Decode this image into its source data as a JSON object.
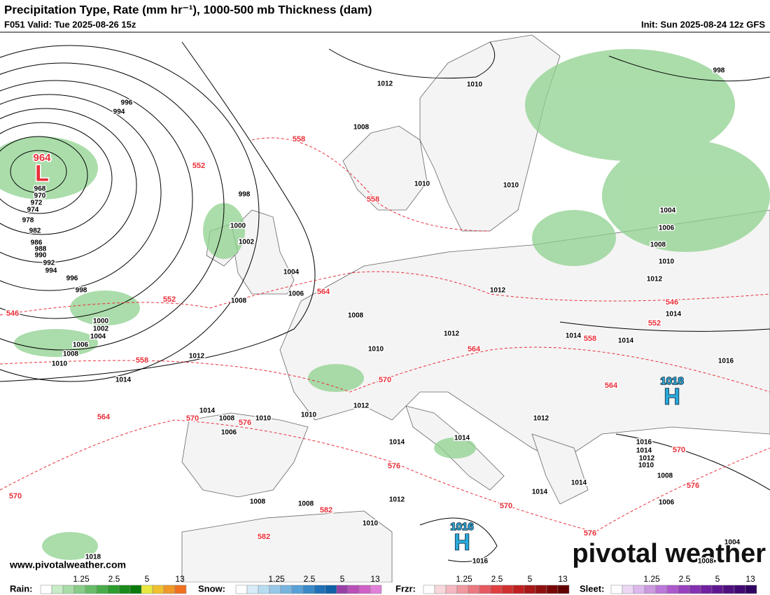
{
  "header": {
    "title": "Precipitation Type, Rate (mm hr⁻¹), 1000-500 mb Thickness (dam)",
    "valid": "F051 Valid: Tue 2025-08-26 15z",
    "init": "Init: Sun 2025-08-24 12z GFS"
  },
  "centers": [
    {
      "value": "964",
      "symbol": "L"
    },
    {
      "value": "1018",
      "symbol": "H"
    },
    {
      "value": "1016",
      "symbol": "H"
    }
  ],
  "isobar_labels": [
    "996",
    "994",
    "968",
    "970",
    "972",
    "974",
    "978",
    "982",
    "986",
    "988",
    "990",
    "992",
    "994",
    "996",
    "998",
    "1000",
    "1002",
    "1004",
    "1006",
    "1008",
    "1010",
    "1012",
    "1014",
    "998",
    "1000",
    "1002",
    "1004",
    "1006",
    "1008",
    "1008",
    "1010",
    "1012",
    "1010",
    "1008",
    "1010",
    "1010",
    "1012",
    "1012",
    "1014",
    "1014",
    "1016",
    "1014",
    "998",
    "1004",
    "1006",
    "1008",
    "1010",
    "1012",
    "1012",
    "1010",
    "1010",
    "1008",
    "1014",
    "1006",
    "1014",
    "1014",
    "1012",
    "1016",
    "1014",
    "1012",
    "1010",
    "1008",
    "1006",
    "1014",
    "1014",
    "1008",
    "1008",
    "1012",
    "1010",
    "1016",
    "1018",
    "1004",
    "1008"
  ],
  "thickness_labels": [
    "558",
    "552",
    "558",
    "546",
    "552",
    "564",
    "558",
    "564",
    "570",
    "564",
    "570",
    "576",
    "570",
    "576",
    "570",
    "582",
    "582",
    "576",
    "546",
    "552",
    "558",
    "564",
    "570",
    "576"
  ],
  "footer": {
    "url": "www.pivotalweather.com",
    "brand": "pivotal weather"
  },
  "legend": [
    {
      "name": "Rain:",
      "ticks": [
        "1.25",
        "2.5",
        "5",
        "13"
      ]
    },
    {
      "name": "Snow:",
      "ticks": [
        "1.25",
        "2.5",
        "5",
        "13"
      ]
    },
    {
      "name": "Frzr:",
      "ticks": [
        "1.25",
        "2.5",
        "5",
        "13"
      ]
    },
    {
      "name": "Sleet:",
      "ticks": [
        "1.25",
        "2.5",
        "5",
        "13"
      ]
    }
  ]
}
